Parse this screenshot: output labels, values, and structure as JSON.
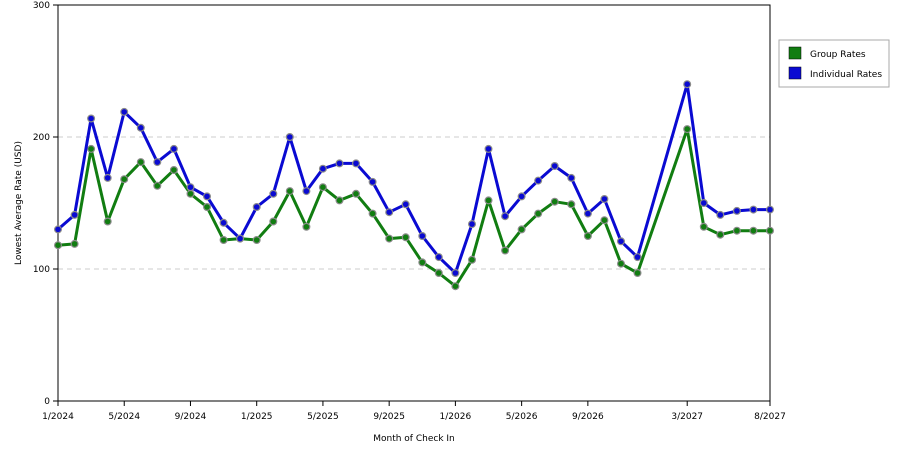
{
  "chart_data": {
    "type": "line",
    "title": "",
    "xlabel": "Month of Check In",
    "ylabel": "Lowest Average Rate (USD)",
    "ylim": [
      0,
      300
    ],
    "y_ticks": [
      "0",
      "100",
      "200",
      "300"
    ],
    "x_tick_labels": [
      "1/2024",
      "5/2024",
      "9/2024",
      "1/2025",
      "5/2025",
      "9/2025",
      "1/2026",
      "5/2026",
      "9/2026",
      "3/2027",
      "8/2027"
    ],
    "x_tick_months": [
      "2024-01",
      "2024-05",
      "2024-09",
      "2025-01",
      "2025-05",
      "2025-09",
      "2026-01",
      "2026-05",
      "2026-09",
      "2027-03",
      "2027-08"
    ],
    "grid": "horizontal dashed at 100 and 200",
    "legend_position": "right",
    "x": [
      "2024-01",
      "2024-02",
      "2024-03",
      "2024-04",
      "2024-05",
      "2024-06",
      "2024-07",
      "2024-08",
      "2024-09",
      "2024-10",
      "2024-11",
      "2024-12",
      "2025-01",
      "2025-02",
      "2025-03",
      "2025-04",
      "2025-05",
      "2025-06",
      "2025-07",
      "2025-08",
      "2025-09",
      "2025-10",
      "2025-11",
      "2025-12",
      "2026-01",
      "2026-02",
      "2026-03",
      "2026-04",
      "2026-05",
      "2026-06",
      "2026-07",
      "2026-08",
      "2026-09",
      "2026-10",
      "2026-11",
      "2026-12",
      "2027-01",
      "2027-02",
      "2027-03",
      "2027-04",
      "2027-05",
      "2027-06",
      "2027-07",
      "2027-08"
    ],
    "series": [
      {
        "name": "Group Rates",
        "color": "#117d11",
        "values": [
          118,
          119,
          191,
          136,
          168,
          181,
          163,
          175,
          157,
          147,
          122,
          123,
          122,
          136,
          159,
          132,
          162,
          152,
          157,
          142,
          123,
          124,
          105,
          97,
          87,
          107,
          152,
          114,
          130,
          142,
          151,
          149,
          125,
          137,
          104,
          97,
          null,
          null,
          206,
          132,
          126,
          129,
          129,
          129
        ]
      },
      {
        "name": "Individual Rates",
        "color": "#0a0ad2",
        "values": [
          130,
          141,
          214,
          169,
          219,
          207,
          181,
          191,
          162,
          155,
          135,
          123,
          147,
          157,
          200,
          159,
          176,
          180,
          180,
          166,
          143,
          149,
          125,
          109,
          97,
          134,
          191,
          140,
          155,
          167,
          178,
          169,
          142,
          153,
          121,
          109,
          null,
          null,
          240,
          150,
          141,
          144,
          145,
          145
        ]
      }
    ]
  }
}
